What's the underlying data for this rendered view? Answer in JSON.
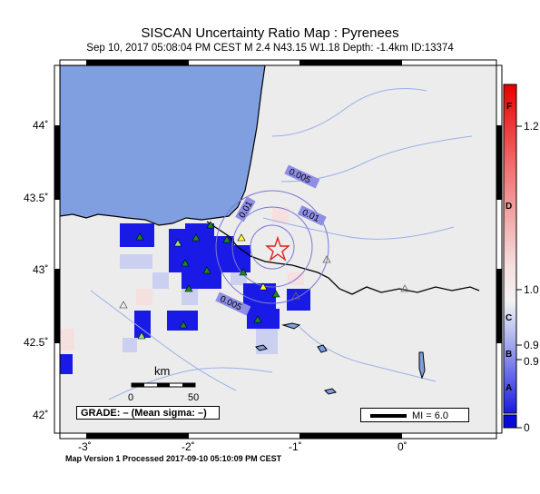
{
  "header": {
    "title": "SISCAN Uncertainty Ratio Map : Pyrenees",
    "subtitle": "Sep 10, 2017 05:08:04 PM CEST   M 2.4   N43.15 W1.18   Depth: -1.4km   ID:13374"
  },
  "footer": {
    "processed": "Map Version 1 Processed 2017-09-10 05:10:09 PM CEST"
  },
  "axes": {
    "lon_ticks": [
      {
        "label": "-3˚",
        "value": -3
      },
      {
        "label": "-2˚",
        "value": -2
      },
      {
        "label": "-1˚",
        "value": -1
      },
      {
        "label": "0˚",
        "value": 0
      }
    ],
    "lat_ticks": [
      {
        "label": "44˚",
        "value": 44
      },
      {
        "label": "43.5˚",
        "value": 43.5
      },
      {
        "label": "43˚",
        "value": 43
      },
      {
        "label": "42.5˚",
        "value": 42.5
      },
      {
        "label": "42˚",
        "value": 42
      }
    ]
  },
  "epicenter": {
    "lat": 43.15,
    "lon": -1.18
  },
  "contours": [
    {
      "label": "0.005"
    },
    {
      "label": "0.01"
    },
    {
      "label": "0.01"
    },
    {
      "label": "0.005"
    }
  ],
  "scalebar": {
    "unit": "km",
    "ticks": [
      "0",
      "50"
    ]
  },
  "grade": {
    "text": "GRADE: – (Mean sigma: –)"
  },
  "mi_legend": {
    "text": "MI = 6.0"
  },
  "colorbar": {
    "letters": [
      "F",
      "D",
      "C",
      "B",
      "A"
    ],
    "values": [
      "1.2",
      "1.0",
      "0.9",
      "0.9",
      "0"
    ],
    "colors": {
      "high": "#ee1111",
      "mid": "#f2f2f2",
      "low": "#0a0ad8"
    }
  },
  "colors": {
    "sea": "#7f9fe0",
    "land": "#ececec",
    "grid_blue": "#1a1ae6",
    "station_green": "#1a8a1a",
    "station_yellow": "#ffff33",
    "star": "#e02020"
  }
}
